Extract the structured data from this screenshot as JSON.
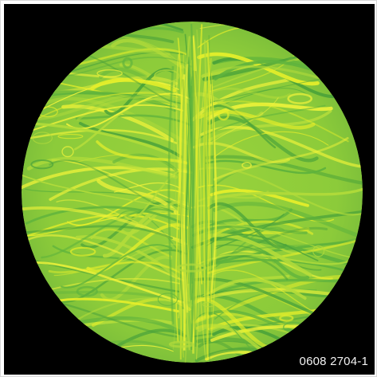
{
  "image": {
    "background_color": "#000000",
    "frame_color": "#ffffff",
    "disk_base_color": "#8fcc3a",
    "swirl_colors": [
      "#e4ee2a",
      "#f2f43a",
      "#5fb33d",
      "#4aa23a",
      "#b3dc3a"
    ],
    "caption": "0608 2704-1"
  }
}
